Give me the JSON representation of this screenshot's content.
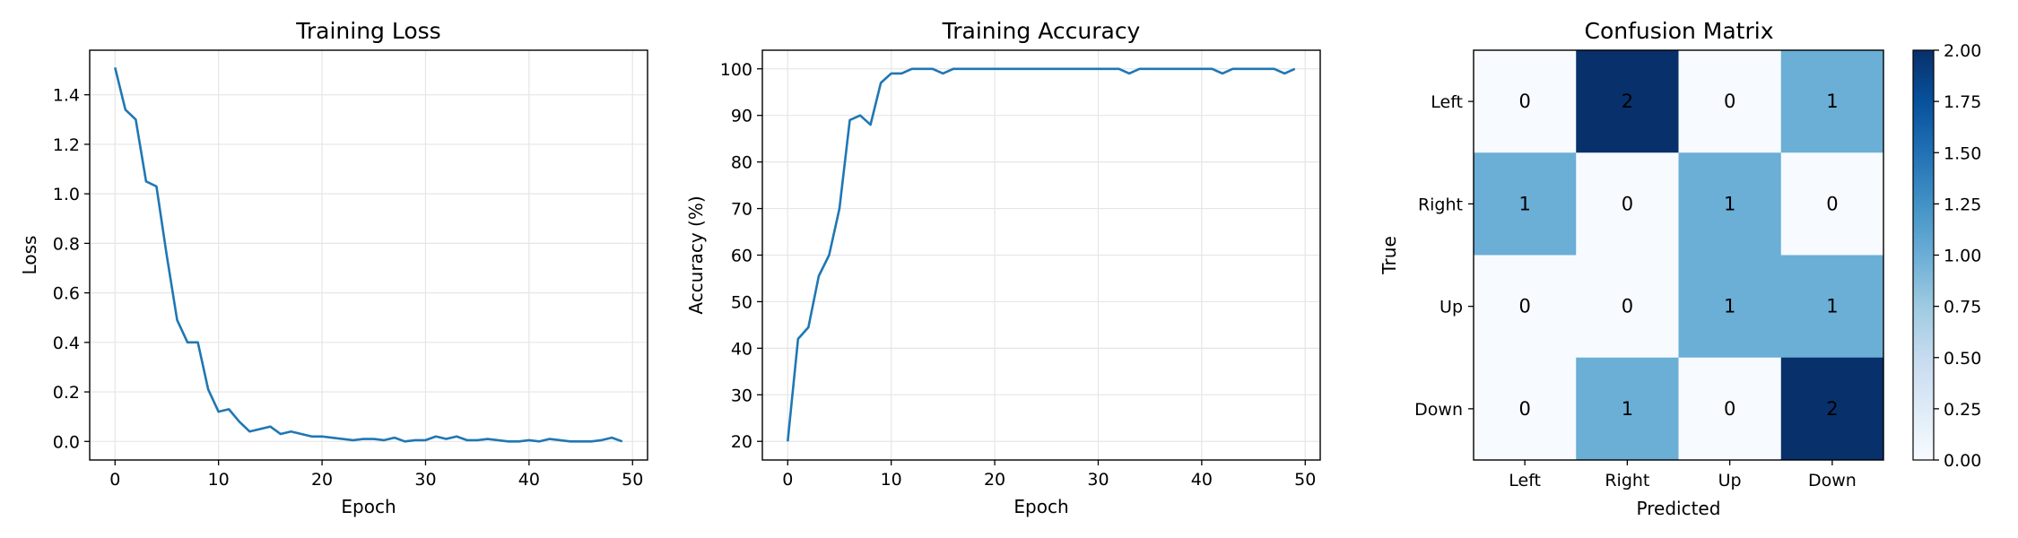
{
  "chart_data": [
    {
      "type": "line",
      "title": "Training Loss",
      "xlabel": "Epoch",
      "ylabel": "Loss",
      "xlim": [
        -2.45,
        51.45
      ],
      "ylim": [
        -0.075,
        1.58
      ],
      "xticks": [
        0,
        10,
        20,
        30,
        40,
        50
      ],
      "yticks": [
        0.0,
        0.2,
        0.4,
        0.6,
        0.8,
        1.0,
        1.2,
        1.4
      ],
      "ytick_labels": [
        "0.0",
        "0.2",
        "0.4",
        "0.6",
        "0.8",
        "1.0",
        "1.2",
        "1.4"
      ],
      "grid": true,
      "color": "#1f77b4",
      "x": [
        0,
        1,
        2,
        3,
        4,
        5,
        6,
        7,
        8,
        9,
        10,
        11,
        12,
        13,
        14,
        15,
        16,
        17,
        18,
        19,
        20,
        21,
        22,
        23,
        24,
        25,
        26,
        27,
        28,
        29,
        30,
        31,
        32,
        33,
        34,
        35,
        36,
        37,
        38,
        39,
        40,
        41,
        42,
        43,
        44,
        45,
        46,
        47,
        48,
        49
      ],
      "y": [
        1.51,
        1.34,
        1.3,
        1.05,
        1.03,
        0.75,
        0.49,
        0.4,
        0.4,
        0.21,
        0.12,
        0.13,
        0.08,
        0.04,
        0.05,
        0.06,
        0.03,
        0.04,
        0.03,
        0.02,
        0.02,
        0.015,
        0.01,
        0.005,
        0.01,
        0.01,
        0.005,
        0.015,
        0.0,
        0.005,
        0.005,
        0.02,
        0.01,
        0.02,
        0.005,
        0.005,
        0.01,
        0.005,
        0.0,
        0.0,
        0.005,
        0.0,
        0.01,
        0.005,
        0.0,
        0.0,
        0.0,
        0.005,
        0.015,
        0.0
      ]
    },
    {
      "type": "line",
      "title": "Training Accuracy",
      "xlabel": "Epoch",
      "ylabel": "Accuracy (%)",
      "xlim": [
        -2.45,
        51.45
      ],
      "ylim": [
        16,
        104
      ],
      "xticks": [
        0,
        10,
        20,
        30,
        40,
        50
      ],
      "yticks": [
        20,
        30,
        40,
        50,
        60,
        70,
        80,
        90,
        100
      ],
      "ytick_labels": [
        "20",
        "30",
        "40",
        "50",
        "60",
        "70",
        "80",
        "90",
        "100"
      ],
      "grid": true,
      "color": "#1f77b4",
      "x": [
        0,
        1,
        2,
        3,
        4,
        5,
        6,
        7,
        8,
        9,
        10,
        11,
        12,
        13,
        14,
        15,
        16,
        17,
        18,
        19,
        20,
        21,
        22,
        23,
        24,
        25,
        26,
        27,
        28,
        29,
        30,
        31,
        32,
        33,
        34,
        35,
        36,
        37,
        38,
        39,
        40,
        41,
        42,
        43,
        44,
        45,
        46,
        47,
        48,
        49
      ],
      "y": [
        20,
        42,
        44.5,
        55.5,
        60,
        70,
        89,
        90,
        88,
        97,
        99,
        99,
        100,
        100,
        100,
        99,
        100,
        100,
        100,
        100,
        100,
        100,
        100,
        100,
        100,
        100,
        100,
        100,
        100,
        100,
        100,
        100,
        100,
        99,
        100,
        100,
        100,
        100,
        100,
        100,
        100,
        100,
        99,
        100,
        100,
        100,
        100,
        100,
        99,
        100
      ]
    },
    {
      "type": "heatmap",
      "title": "Confusion Matrix",
      "xlabel": "Predicted",
      "ylabel": "True",
      "x_labels": [
        "Left",
        "Right",
        "Up",
        "Down"
      ],
      "y_labels": [
        "Left",
        "Right",
        "Up",
        "Down"
      ],
      "values": [
        [
          0,
          2,
          0,
          1
        ],
        [
          1,
          0,
          1,
          0
        ],
        [
          0,
          0,
          1,
          1
        ],
        [
          0,
          1,
          0,
          2
        ]
      ],
      "colormap": "Blues",
      "vmin": 0,
      "vmax": 2,
      "colorbar_ticks": [
        0.0,
        0.25,
        0.5,
        0.75,
        1.0,
        1.25,
        1.5,
        1.75,
        2.0
      ],
      "colorbar_tick_labels": [
        "0.00",
        "0.25",
        "0.50",
        "0.75",
        "1.00",
        "1.25",
        "1.50",
        "1.75",
        "2.00"
      ]
    }
  ]
}
